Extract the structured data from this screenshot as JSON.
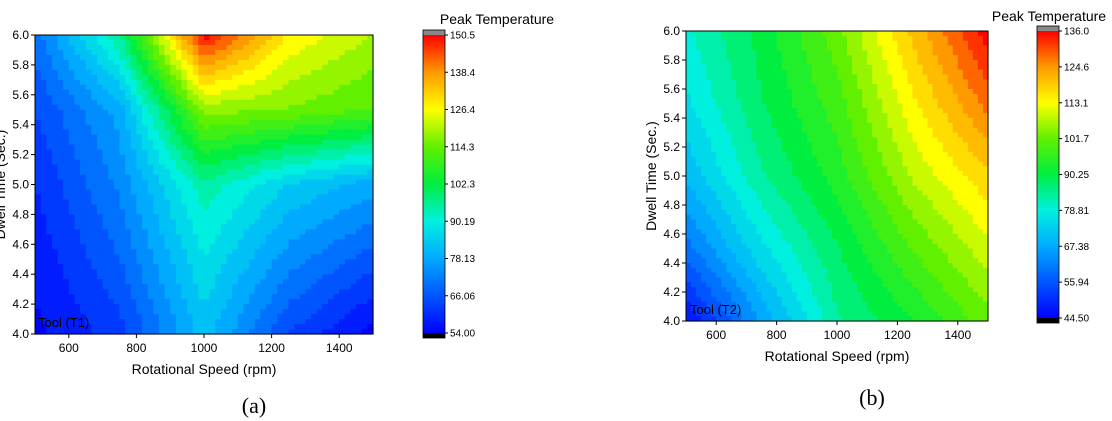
{
  "chart_data": [
    {
      "type": "heatmap",
      "panel_caption": "(a)",
      "annotation": "Tool (T1)",
      "xlabel": "Rotational Speed (rpm)",
      "ylabel": "Dwell Time (Sec.)",
      "xlim": [
        500,
        1500
      ],
      "ylim": [
        4.0,
        6.0
      ],
      "x_ticks": [
        "600",
        "800",
        "1000",
        "1200",
        "1400"
      ],
      "y_ticks": [
        "4.0",
        "4.2",
        "4.4",
        "4.6",
        "4.8",
        "5.0",
        "5.2",
        "5.4",
        "5.6",
        "5.8",
        "6.0"
      ],
      "x": [
        500,
        750,
        1000,
        1250,
        1500
      ],
      "y": [
        4.0,
        4.5,
        5.0,
        5.5,
        6.0
      ],
      "z": [
        [
          55,
          62,
          82,
          64,
          54
        ],
        [
          57,
          68,
          88,
          74,
          66
        ],
        [
          60,
          73,
          95,
          84,
          78
        ],
        [
          64,
          78,
          118,
          116,
          112
        ],
        [
          70,
          96,
          150.5,
          128,
          120
        ]
      ],
      "colorbar": {
        "title": "Peak Temperature",
        "min": 54.0,
        "max": 150.5,
        "tick_labels": [
          "54.00",
          "66.06",
          "78.13",
          "90.19",
          "102.3",
          "114.3",
          "126.4",
          "138.4",
          "150.5"
        ]
      },
      "grid": false
    },
    {
      "type": "heatmap",
      "panel_caption": "(b)",
      "annotation": "Tool (T2)",
      "xlabel": "Rotational Speed (rpm)",
      "ylabel": "Dwell Time (Sec.)",
      "xlim": [
        500,
        1500
      ],
      "ylim": [
        4.0,
        6.0
      ],
      "x_ticks": [
        "600",
        "800",
        "1000",
        "1200",
        "1400"
      ],
      "y_ticks": [
        "4.0",
        "4.2",
        "4.4",
        "4.6",
        "4.8",
        "5.0",
        "5.2",
        "5.4",
        "5.6",
        "5.8",
        "6.0"
      ],
      "x": [
        500,
        750,
        1000,
        1250,
        1500
      ],
      "y": [
        4.0,
        4.5,
        5.0,
        5.5,
        6.0
      ],
      "z": [
        [
          46,
          66,
          84,
          92,
          102
        ],
        [
          60,
          76,
          88,
          100,
          110
        ],
        [
          70,
          84,
          94,
          108,
          118
        ],
        [
          76,
          88,
          98,
          114,
          128
        ],
        [
          80,
          90,
          102,
          120,
          136
        ]
      ],
      "colorbar": {
        "title": "Peak Temperature",
        "min": 44.5,
        "max": 136.0,
        "tick_labels": [
          "44.50",
          "55.94",
          "67.38",
          "78.81",
          "90.25",
          "101.7",
          "113.1",
          "124.6",
          "136.0"
        ]
      },
      "grid": false
    }
  ]
}
